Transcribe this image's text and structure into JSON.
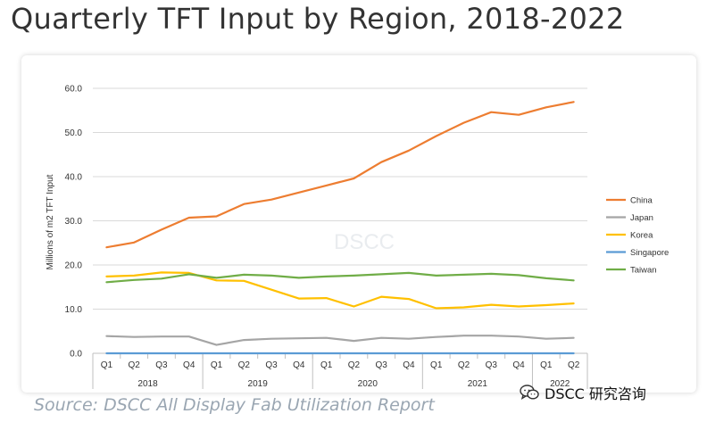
{
  "title": "Quarterly TFT Input by Region, 2018-2022",
  "source": "Source: DSCC All Display Fab Utilization Report",
  "brand": {
    "text": "DSCC 研究咨询",
    "icon": "chat-bubbles-icon"
  },
  "watermark": "DSCC",
  "colors": {
    "China": "#ED7D31",
    "Japan": "#A5A5A5",
    "Korea": "#FFC000",
    "Singapore": "#5B9BD5",
    "Taiwan": "#70AD47"
  },
  "chart_data": {
    "type": "line",
    "title": "Quarterly TFT Input by Region, 2018-2022",
    "ylabel": "Millions of m2 TFT Input",
    "xlabel": "",
    "ylim": [
      0,
      60
    ],
    "yticks": [
      "0.0",
      "10.0",
      "20.0",
      "30.0",
      "40.0",
      "50.0",
      "60.0"
    ],
    "grid": true,
    "legend": "right",
    "categories": [
      "Q1",
      "Q2",
      "Q3",
      "Q4",
      "Q1",
      "Q2",
      "Q3",
      "Q4",
      "Q1",
      "Q2",
      "Q3",
      "Q4",
      "Q1",
      "Q2",
      "Q3",
      "Q4",
      "Q1",
      "Q2"
    ],
    "year_groups": [
      {
        "label": "2018",
        "count": 4
      },
      {
        "label": "2019",
        "count": 4
      },
      {
        "label": "2020",
        "count": 4
      },
      {
        "label": "2021",
        "count": 4
      },
      {
        "label": "2022",
        "count": 2
      }
    ],
    "series": [
      {
        "name": "China",
        "values": [
          24.0,
          25.1,
          28.0,
          30.7,
          31.0,
          33.8,
          34.8,
          36.4,
          38.0,
          39.6,
          43.3,
          45.9,
          49.2,
          52.2,
          54.6,
          54.0,
          55.7,
          56.9
        ]
      },
      {
        "name": "Japan",
        "values": [
          3.9,
          3.7,
          3.8,
          3.8,
          1.9,
          3.0,
          3.3,
          3.4,
          3.5,
          2.8,
          3.5,
          3.3,
          3.7,
          4.0,
          4.0,
          3.8,
          3.3,
          3.5
        ]
      },
      {
        "name": "Korea",
        "values": [
          17.4,
          17.6,
          18.3,
          18.2,
          16.5,
          16.4,
          14.4,
          12.4,
          12.5,
          10.6,
          12.8,
          12.3,
          10.2,
          10.4,
          11.0,
          10.6,
          10.9,
          11.3
        ]
      },
      {
        "name": "Singapore",
        "values": [
          0.0,
          0.0,
          0.0,
          0.0,
          0.0,
          0.0,
          0.0,
          0.0,
          0.0,
          0.0,
          0.0,
          0.0,
          0.0,
          0.0,
          0.0,
          0.0,
          0.0,
          0.0
        ]
      },
      {
        "name": "Taiwan",
        "values": [
          16.1,
          16.6,
          16.9,
          17.9,
          17.1,
          17.8,
          17.6,
          17.1,
          17.4,
          17.6,
          17.9,
          18.2,
          17.6,
          17.8,
          18.0,
          17.7,
          17.0,
          16.5
        ]
      }
    ]
  }
}
